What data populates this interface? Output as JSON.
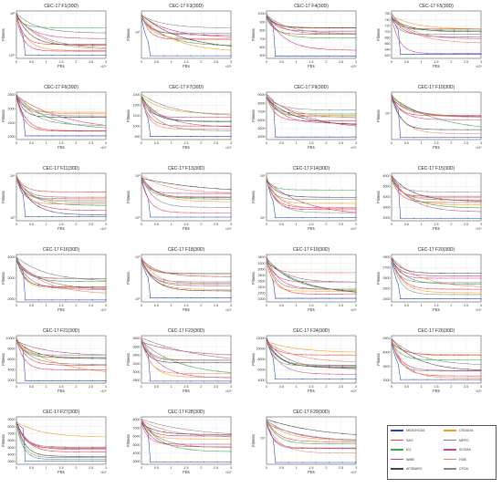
{
  "colors": [
    "#1f3fbf",
    "#f59a1d",
    "#e8403a",
    "#7f7f7f",
    "#3aa64a",
    "#c2478f",
    "#d4356e",
    "#e8836b",
    "#444444",
    "#8a8a8a"
  ],
  "legend": [
    "MSACHOZA",
    "CSOAOA",
    "SAO",
    "MRFO",
    "ICL",
    "SCSMA",
    "WMB",
    "HGB",
    "AFGBARO",
    "CFOA"
  ],
  "common": {
    "xlabel": "FEs",
    "ylabel": "Fitness",
    "x_exp": "×10⁵",
    "xticks": [
      "0",
      "0.5",
      "1",
      "1.5",
      "2",
      "2.5",
      "3"
    ]
  },
  "chart_data": [
    {
      "type": "line",
      "title": "CEC-17 F1(30D)",
      "yticks": [
        "10⁵",
        "10¹⁰"
      ],
      "log": true
    },
    {
      "type": "line",
      "title": "CEC-17 F3(30D)",
      "yticks": [
        "10⁵"
      ],
      "log": true
    },
    {
      "type": "line",
      "title": "CEC-17 F4(30D)",
      "yticks": [
        "1000",
        "900",
        "800",
        "700",
        "600",
        "500"
      ],
      "log": false
    },
    {
      "type": "line",
      "title": "CEC-17 F5(30D)",
      "yticks": [
        "760",
        "740",
        "720",
        "700",
        "680",
        "660",
        "640",
        "620"
      ],
      "log": false
    },
    {
      "type": "line",
      "title": "CEC-17 F6(30D)",
      "yticks": [
        "2500",
        "2000",
        "1500",
        "1000"
      ],
      "log": false
    },
    {
      "type": "line",
      "title": "CEC-17 F7(30D)",
      "yticks": [
        "1300",
        "1200",
        "1100",
        "1000",
        "900"
      ],
      "log": false
    },
    {
      "type": "line",
      "title": "CEC-17 F9(30D)",
      "yticks": [
        "9000",
        "8000",
        "7000",
        "6000",
        "5000",
        "4000"
      ],
      "log": false
    },
    {
      "type": "line",
      "title": "CEC-17 F10(30D)",
      "yticks": [
        "10⁴"
      ],
      "log": true
    },
    {
      "type": "line",
      "title": "CEC-17 F11(30D)",
      "yticks": [
        "10⁴",
        "10³"
      ],
      "log": true
    },
    {
      "type": "line",
      "title": "CEC-17 F13(30D)",
      "yticks": [
        "10⁸",
        "10⁶"
      ],
      "log": true
    },
    {
      "type": "line",
      "title": "CEC-17 F14(30D)",
      "yticks": [
        "10⁶",
        "10⁴"
      ],
      "log": true
    },
    {
      "type": "line",
      "title": "CEC-17 F15(30D)",
      "yticks": [
        "6000",
        "5000",
        "4000",
        "3000",
        "2000"
      ],
      "log": false
    },
    {
      "type": "line",
      "title": "CEC-17 F16(30D)",
      "yticks": [
        "4000",
        "3000",
        "2000"
      ],
      "log": false
    },
    {
      "type": "line",
      "title": "CEC-17 F18(30D)",
      "yticks": [
        "10⁸",
        "10⁶"
      ],
      "log": true
    },
    {
      "type": "line",
      "title": "CEC-17 F19(30D)",
      "yticks": [
        "3400",
        "3200",
        "3000",
        "2800",
        "2600",
        "2400",
        "2200",
        "2000"
      ],
      "log": false
    },
    {
      "type": "line",
      "title": "CEC-17 F20(30D)",
      "yticks": [
        "2800",
        "2700",
        "2600",
        "2500",
        "2400"
      ],
      "log": false
    },
    {
      "type": "line",
      "title": "CEC-17 F21(30D)",
      "yticks": [
        "10000",
        "8000",
        "6000",
        "4000",
        "2000"
      ],
      "log": false
    },
    {
      "type": "line",
      "title": "CEC-17 F23(30D)",
      "yticks": [
        "3800",
        "3600",
        "3400",
        "3200",
        "3000",
        "2800"
      ],
      "log": false
    },
    {
      "type": "line",
      "title": "CEC-17 F24(30D)",
      "yticks": [
        "12000",
        "10000",
        "8000",
        "6000",
        "4000"
      ],
      "log": false
    },
    {
      "type": "line",
      "title": "CEC-17 F26(30D)",
      "yticks": [
        "4500",
        "4000",
        "3500",
        "3000"
      ],
      "log": false
    },
    {
      "type": "line",
      "title": "CEC-17 F27(30D)",
      "yticks": [
        "9000",
        "8000",
        "7000",
        "6000",
        "5000",
        "4000",
        "3000"
      ],
      "log": false
    },
    {
      "type": "line",
      "title": "CEC-17 F28(30D)",
      "yticks": [
        "8000",
        "7000",
        "6000",
        "5000",
        "4000",
        "3000"
      ],
      "log": false
    },
    {
      "type": "line",
      "title": "CEC-17 F29(30D)",
      "yticks": [
        "10⁴"
      ],
      "log": true
    }
  ]
}
